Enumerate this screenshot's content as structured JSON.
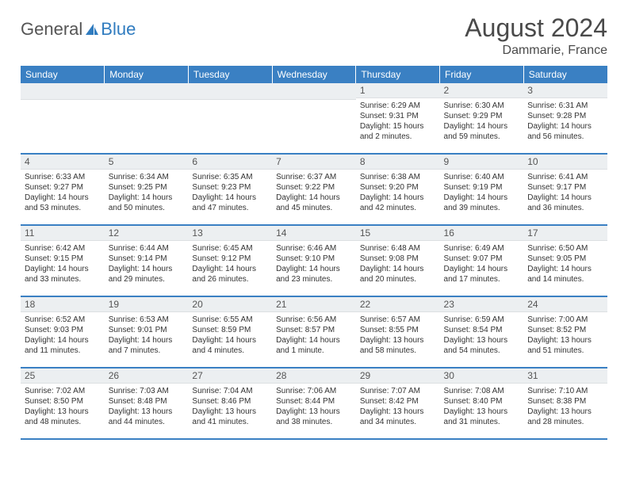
{
  "brand": {
    "text1": "General",
    "text2": "Blue"
  },
  "title": "August 2024",
  "subtitle": "Dammarie, France",
  "colors": {
    "header_bg": "#3a80c3",
    "header_text": "#ffffff",
    "daynum_bg": "#eceff1",
    "border": "#3a80c3",
    "body_text": "#333333"
  },
  "weekdays": [
    "Sunday",
    "Monday",
    "Tuesday",
    "Wednesday",
    "Thursday",
    "Friday",
    "Saturday"
  ],
  "weeks": [
    [
      null,
      null,
      null,
      null,
      {
        "n": "1",
        "sunrise": "6:29 AM",
        "sunset": "9:31 PM",
        "daylight": "15 hours and 2 minutes."
      },
      {
        "n": "2",
        "sunrise": "6:30 AM",
        "sunset": "9:29 PM",
        "daylight": "14 hours and 59 minutes."
      },
      {
        "n": "3",
        "sunrise": "6:31 AM",
        "sunset": "9:28 PM",
        "daylight": "14 hours and 56 minutes."
      }
    ],
    [
      {
        "n": "4",
        "sunrise": "6:33 AM",
        "sunset": "9:27 PM",
        "daylight": "14 hours and 53 minutes."
      },
      {
        "n": "5",
        "sunrise": "6:34 AM",
        "sunset": "9:25 PM",
        "daylight": "14 hours and 50 minutes."
      },
      {
        "n": "6",
        "sunrise": "6:35 AM",
        "sunset": "9:23 PM",
        "daylight": "14 hours and 47 minutes."
      },
      {
        "n": "7",
        "sunrise": "6:37 AM",
        "sunset": "9:22 PM",
        "daylight": "14 hours and 45 minutes."
      },
      {
        "n": "8",
        "sunrise": "6:38 AM",
        "sunset": "9:20 PM",
        "daylight": "14 hours and 42 minutes."
      },
      {
        "n": "9",
        "sunrise": "6:40 AM",
        "sunset": "9:19 PM",
        "daylight": "14 hours and 39 minutes."
      },
      {
        "n": "10",
        "sunrise": "6:41 AM",
        "sunset": "9:17 PM",
        "daylight": "14 hours and 36 minutes."
      }
    ],
    [
      {
        "n": "11",
        "sunrise": "6:42 AM",
        "sunset": "9:15 PM",
        "daylight": "14 hours and 33 minutes."
      },
      {
        "n": "12",
        "sunrise": "6:44 AM",
        "sunset": "9:14 PM",
        "daylight": "14 hours and 29 minutes."
      },
      {
        "n": "13",
        "sunrise": "6:45 AM",
        "sunset": "9:12 PM",
        "daylight": "14 hours and 26 minutes."
      },
      {
        "n": "14",
        "sunrise": "6:46 AM",
        "sunset": "9:10 PM",
        "daylight": "14 hours and 23 minutes."
      },
      {
        "n": "15",
        "sunrise": "6:48 AM",
        "sunset": "9:08 PM",
        "daylight": "14 hours and 20 minutes."
      },
      {
        "n": "16",
        "sunrise": "6:49 AM",
        "sunset": "9:07 PM",
        "daylight": "14 hours and 17 minutes."
      },
      {
        "n": "17",
        "sunrise": "6:50 AM",
        "sunset": "9:05 PM",
        "daylight": "14 hours and 14 minutes."
      }
    ],
    [
      {
        "n": "18",
        "sunrise": "6:52 AM",
        "sunset": "9:03 PM",
        "daylight": "14 hours and 11 minutes."
      },
      {
        "n": "19",
        "sunrise": "6:53 AM",
        "sunset": "9:01 PM",
        "daylight": "14 hours and 7 minutes."
      },
      {
        "n": "20",
        "sunrise": "6:55 AM",
        "sunset": "8:59 PM",
        "daylight": "14 hours and 4 minutes."
      },
      {
        "n": "21",
        "sunrise": "6:56 AM",
        "sunset": "8:57 PM",
        "daylight": "14 hours and 1 minute."
      },
      {
        "n": "22",
        "sunrise": "6:57 AM",
        "sunset": "8:55 PM",
        "daylight": "13 hours and 58 minutes."
      },
      {
        "n": "23",
        "sunrise": "6:59 AM",
        "sunset": "8:54 PM",
        "daylight": "13 hours and 54 minutes."
      },
      {
        "n": "24",
        "sunrise": "7:00 AM",
        "sunset": "8:52 PM",
        "daylight": "13 hours and 51 minutes."
      }
    ],
    [
      {
        "n": "25",
        "sunrise": "7:02 AM",
        "sunset": "8:50 PM",
        "daylight": "13 hours and 48 minutes."
      },
      {
        "n": "26",
        "sunrise": "7:03 AM",
        "sunset": "8:48 PM",
        "daylight": "13 hours and 44 minutes."
      },
      {
        "n": "27",
        "sunrise": "7:04 AM",
        "sunset": "8:46 PM",
        "daylight": "13 hours and 41 minutes."
      },
      {
        "n": "28",
        "sunrise": "7:06 AM",
        "sunset": "8:44 PM",
        "daylight": "13 hours and 38 minutes."
      },
      {
        "n": "29",
        "sunrise": "7:07 AM",
        "sunset": "8:42 PM",
        "daylight": "13 hours and 34 minutes."
      },
      {
        "n": "30",
        "sunrise": "7:08 AM",
        "sunset": "8:40 PM",
        "daylight": "13 hours and 31 minutes."
      },
      {
        "n": "31",
        "sunrise": "7:10 AM",
        "sunset": "8:38 PM",
        "daylight": "13 hours and 28 minutes."
      }
    ]
  ]
}
